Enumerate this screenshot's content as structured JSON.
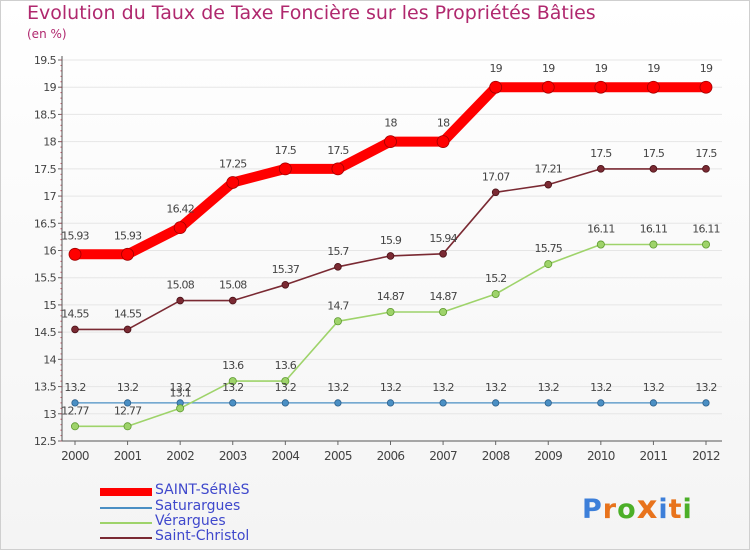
{
  "title": "Evolution du Taux de Taxe Foncière sur les Propriétés Bâties",
  "subtitle": "(en %)",
  "chart_data": {
    "type": "line",
    "title": "Evolution du Taux de Taxe Foncière sur les Propriétés Bâties",
    "ylabel": "(en %)",
    "xlabel": "",
    "ylim": [
      12.5,
      19.5
    ],
    "yticks": [
      "12.5",
      "13",
      "13.5",
      "14",
      "14.5",
      "15",
      "15.5",
      "16",
      "16.5",
      "17",
      "17.5",
      "18",
      "18.5",
      "19",
      "19.5"
    ],
    "categories": [
      "2000",
      "2001",
      "2002",
      "2003",
      "2004",
      "2005",
      "2006",
      "2007",
      "2008",
      "2009",
      "2010",
      "2011",
      "2012"
    ],
    "grid": "horizontal",
    "series": [
      {
        "name": "SAINT-SéRIèS",
        "color": "#ff0000",
        "values": [
          15.93,
          15.93,
          16.42,
          17.25,
          17.5,
          17.5,
          18,
          18,
          19,
          19,
          19,
          19,
          19
        ],
        "labels": [
          "15.93",
          "15.93",
          "16.42",
          "17.25",
          "17.5",
          "17.5",
          "18",
          "18",
          "19",
          "19",
          "19",
          "19",
          "19"
        ]
      },
      {
        "name": "Saturargues",
        "color": "#4a8fc4",
        "values": [
          13.2,
          13.2,
          13.2,
          13.2,
          13.2,
          13.2,
          13.2,
          13.2,
          13.2,
          13.2,
          13.2,
          13.2,
          13.2
        ],
        "labels": [
          "13.2",
          "13.2",
          "13.2",
          "13.2",
          "13.2",
          "13.2",
          "13.2",
          "13.2",
          "13.2",
          "13.2",
          "13.2",
          "13.2",
          "13.2"
        ]
      },
      {
        "name": "Vérargues",
        "color": "#9ed36a",
        "values": [
          12.77,
          12.77,
          13.1,
          13.6,
          13.6,
          14.7,
          14.87,
          14.87,
          15.2,
          15.75,
          16.11,
          16.11,
          16.11
        ],
        "labels": [
          "12.77",
          "12.77",
          "13.1",
          "13.6",
          "13.6",
          "14.7",
          "14.87",
          "14.87",
          "15.2",
          "15.75",
          "16.11",
          "16.11",
          "16.11"
        ]
      },
      {
        "name": "Saint-Christol",
        "color": "#7a2a33",
        "values": [
          14.55,
          14.55,
          15.08,
          15.08,
          15.37,
          15.7,
          15.9,
          15.94,
          17.07,
          17.21,
          17.5,
          17.5,
          17.5
        ],
        "labels": [
          "14.55",
          "14.55",
          "15.08",
          "15.08",
          "15.37",
          "15.7",
          "15.9",
          "15.94",
          "17.07",
          "17.21",
          "17.5",
          "17.5",
          "17.5"
        ]
      }
    ]
  },
  "logo": {
    "text": "Proxiti",
    "letters": [
      "P",
      "r",
      "o",
      "x",
      "i",
      "t",
      "i"
    ],
    "colors": [
      "#3d7fd9",
      "#e8731c",
      "#4caf28",
      "#e8731c",
      "#3d7fd9",
      "#e8731c",
      "#4caf28"
    ]
  }
}
